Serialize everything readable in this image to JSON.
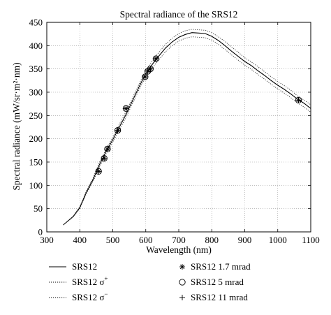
{
  "chart_data": {
    "type": "line",
    "title": "Spectral radiance of the SRS12",
    "xlabel": "Wavelength (nm)",
    "ylabel": "Spectral radiance (mW/sr·m²·nm)",
    "xlim": [
      300,
      1100
    ],
    "ylim": [
      0,
      450
    ],
    "xticks": [
      300,
      400,
      500,
      600,
      700,
      800,
      900,
      1000,
      1100
    ],
    "yticks": [
      0,
      50,
      100,
      150,
      200,
      250,
      300,
      350,
      400,
      450
    ],
    "grid": true,
    "legend_position": "below",
    "series": [
      {
        "name": "SRS12",
        "style": "solid",
        "x": [
          350,
          380,
          400,
          420,
          440,
          460,
          480,
          500,
          520,
          540,
          560,
          580,
          600,
          620,
          640,
          660,
          680,
          700,
          720,
          740,
          760,
          780,
          800,
          820,
          840,
          860,
          880,
          900,
          920,
          940,
          960,
          980,
          1000,
          1020,
          1040,
          1060,
          1080,
          1100
        ],
        "y": [
          15,
          33,
          52,
          85,
          112,
          145,
          173,
          198,
          225,
          252,
          282,
          312,
          340,
          360,
          378,
          395,
          408,
          418,
          424,
          428,
          427,
          426,
          420,
          411,
          400,
          388,
          377,
          366,
          357,
          346,
          336,
          325,
          315,
          306,
          296,
          285,
          276,
          265
        ]
      },
      {
        "name": "SRS12 σ⁺",
        "style": "dotted",
        "x": [
          350,
          380,
          400,
          420,
          440,
          460,
          480,
          500,
          520,
          540,
          560,
          580,
          600,
          620,
          640,
          660,
          680,
          700,
          720,
          740,
          760,
          780,
          800,
          820,
          840,
          860,
          880,
          900,
          920,
          940,
          960,
          980,
          1000,
          1020,
          1040,
          1060,
          1080,
          1100
        ],
        "y": [
          15,
          34,
          54,
          88,
          116,
          150,
          178,
          203,
          231,
          258,
          288,
          318,
          347,
          367,
          386,
          403,
          416,
          426,
          432,
          435,
          434,
          433,
          428,
          419,
          409,
          397,
          386,
          374,
          365,
          355,
          344,
          333,
          323,
          314,
          304,
          292,
          283,
          273
        ]
      },
      {
        "name": "SRS12 σ⁻",
        "style": "dotted",
        "x": [
          350,
          380,
          400,
          420,
          440,
          460,
          480,
          500,
          520,
          540,
          560,
          580,
          600,
          620,
          640,
          660,
          680,
          700,
          720,
          740,
          760,
          780,
          800,
          820,
          840,
          860,
          880,
          900,
          920,
          940,
          960,
          980,
          1000,
          1020,
          1040,
          1060,
          1080,
          1100
        ],
        "y": [
          15,
          32,
          50,
          82,
          108,
          140,
          168,
          193,
          219,
          246,
          276,
          306,
          333,
          352,
          370,
          387,
          400,
          410,
          416,
          419,
          418,
          417,
          412,
          403,
          392,
          380,
          369,
          358,
          349,
          338,
          328,
          317,
          307,
          298,
          288,
          277,
          268,
          257
        ]
      },
      {
        "name": "SRS12 1.7 mrad",
        "style": "marker-asterisk",
        "x": [
          457,
          474,
          484,
          515,
          540,
          598,
          606,
          614,
          631,
          1063
        ],
        "y": [
          130,
          158,
          178,
          218,
          265,
          333,
          345,
          350,
          372,
          283
        ]
      },
      {
        "name": "SRS12 5 mrad",
        "style": "marker-circle",
        "x": [
          457,
          474,
          484,
          515,
          540,
          598,
          606,
          614,
          631,
          1063
        ],
        "y": [
          130,
          158,
          178,
          218,
          265,
          333,
          345,
          350,
          372,
          283
        ]
      },
      {
        "name": "SRS12 11 mrad",
        "style": "marker-plus",
        "x": [
          457,
          474,
          484,
          515,
          540,
          598,
          606,
          614,
          631,
          1063
        ],
        "y": [
          130,
          158,
          178,
          218,
          265,
          333,
          345,
          350,
          372,
          283
        ]
      }
    ]
  },
  "legend": {
    "items": [
      {
        "label": "SRS12",
        "sup": ""
      },
      {
        "label": "SRS12 σ",
        "sup": "+"
      },
      {
        "label": "SRS12 σ",
        "sup": "−"
      },
      {
        "label": "SRS12 1.7 mrad",
        "sup": ""
      },
      {
        "label": "SRS12 5 mrad",
        "sup": ""
      },
      {
        "label": "SRS12 11 mrad",
        "sup": ""
      }
    ]
  }
}
